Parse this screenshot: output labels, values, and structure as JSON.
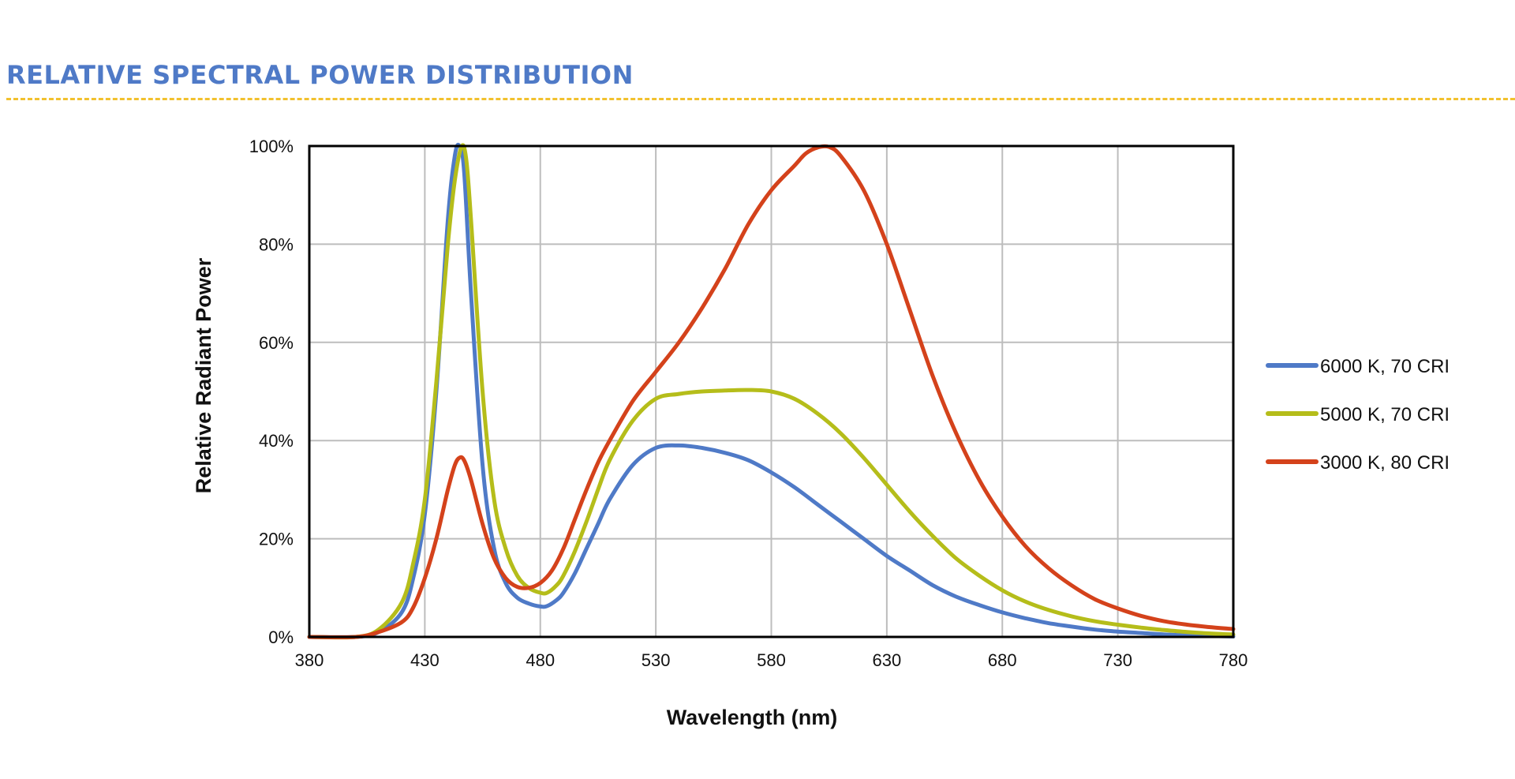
{
  "page": {
    "title": "RELATIVE SPECTRAL POWER DISTRIBUTION",
    "title_color": "#4f7ac7",
    "rule_color": "#f2c12e"
  },
  "chart_data": {
    "type": "line",
    "title": "",
    "xlabel": "Wavelength (nm)",
    "ylabel": "Relative Radiant Power",
    "xlim": [
      380,
      780
    ],
    "ylim": [
      0,
      100
    ],
    "xticks": [
      380,
      430,
      480,
      530,
      580,
      630,
      680,
      730,
      780
    ],
    "yticks": [
      0,
      20,
      40,
      60,
      80,
      100
    ],
    "ytick_labels": [
      "0%",
      "20%",
      "40%",
      "60%",
      "80%",
      "100%"
    ],
    "grid": true,
    "legend_position": "right",
    "series": [
      {
        "name": "6000 K, 70 CRI",
        "color": "#4f7ac7",
        "x": [
          380,
          400,
          410,
          420,
          425,
          430,
          435,
          440,
          443,
          445,
          447,
          450,
          455,
          460,
          465,
          470,
          475,
          480,
          483,
          487,
          490,
          495,
          500,
          505,
          510,
          520,
          530,
          540,
          550,
          560,
          570,
          580,
          590,
          600,
          610,
          620,
          630,
          640,
          650,
          660,
          670,
          680,
          690,
          700,
          710,
          720,
          730,
          740,
          750,
          760,
          770,
          780
        ],
        "y": [
          0,
          0,
          1,
          5,
          12,
          25,
          50,
          85,
          98,
          100,
          95,
          70,
          35,
          18,
          11,
          8,
          6.8,
          6.2,
          6.3,
          7.5,
          9,
          13,
          18,
          23,
          28,
          35,
          38.5,
          39,
          38.5,
          37.5,
          36,
          33.5,
          30.5,
          27,
          23.5,
          20,
          16.5,
          13.5,
          10.5,
          8.2,
          6.5,
          5,
          3.8,
          2.8,
          2.1,
          1.5,
          1.1,
          0.8,
          0.5,
          0.3,
          0.2,
          0.1
        ]
      },
      {
        "name": "5000 K, 70 CRI",
        "color": "#b5bd1a",
        "x": [
          380,
          400,
          410,
          420,
          425,
          430,
          435,
          440,
          443,
          446,
          448,
          450,
          455,
          460,
          465,
          470,
          475,
          480,
          483,
          487,
          490,
          495,
          500,
          505,
          510,
          520,
          530,
          540,
          550,
          560,
          570,
          580,
          590,
          600,
          610,
          620,
          630,
          640,
          650,
          660,
          670,
          680,
          690,
          700,
          710,
          720,
          730,
          740,
          750,
          760,
          770,
          780
        ],
        "y": [
          0,
          0,
          1.5,
          7,
          15,
          28,
          52,
          80,
          93,
          100,
          97,
          85,
          50,
          28,
          18,
          12.5,
          10,
          9,
          9,
          10.5,
          12.5,
          17.5,
          23.5,
          30,
          36,
          44,
          48.5,
          49.5,
          50,
          50.2,
          50.3,
          50,
          48.5,
          45.5,
          41.5,
          36.5,
          31,
          25.5,
          20.5,
          16,
          12.5,
          9.5,
          7.2,
          5.5,
          4.2,
          3.2,
          2.5,
          1.9,
          1.4,
          1.0,
          0.7,
          0.5
        ]
      },
      {
        "name": "3000 K, 80 CRI",
        "color": "#d4421b",
        "x": [
          380,
          400,
          410,
          420,
          425,
          430,
          435,
          440,
          443,
          445,
          447,
          450,
          455,
          460,
          465,
          470,
          475,
          480,
          485,
          490,
          495,
          500,
          505,
          510,
          520,
          530,
          540,
          550,
          560,
          570,
          580,
          590,
          595,
          600,
          605,
          610,
          620,
          630,
          640,
          650,
          660,
          670,
          680,
          690,
          700,
          710,
          720,
          730,
          740,
          750,
          760,
          770,
          780
        ],
        "y": [
          0,
          0,
          1,
          3,
          6,
          12,
          20,
          30,
          35,
          36.5,
          36,
          32,
          23,
          16,
          12,
          10.2,
          10,
          11,
          13.5,
          18,
          24,
          30,
          35.5,
          40,
          48,
          54,
          60,
          67,
          75,
          84,
          91,
          96,
          98.5,
          99.7,
          99.8,
          98,
          91,
          80,
          66.5,
          53,
          41.5,
          32,
          24.5,
          18.5,
          14,
          10.5,
          7.7,
          5.8,
          4.3,
          3.2,
          2.5,
          2.0,
          1.6
        ]
      }
    ]
  }
}
